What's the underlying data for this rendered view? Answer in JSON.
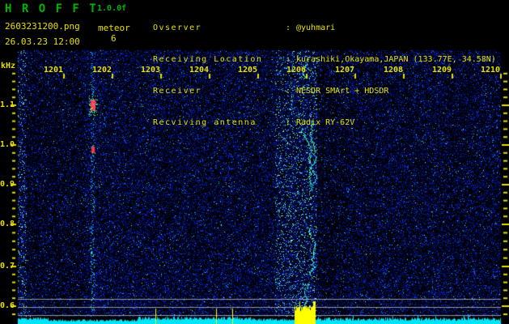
{
  "app": {
    "title": "H R O F F T",
    "version": "1.0.0f",
    "filename": "2603231200.png",
    "station_label": "meteor",
    "station_number": "6",
    "datetime": "26.03.23 12:00"
  },
  "info": {
    "rows": [
      {
        "label": "Ovserver",
        "sep": ":",
        "value": "@yuhmari"
      },
      {
        "label": "Receiving Location",
        "sep": ":",
        "value": "kurashiki,Okayama,JAPAN (133.77E, 34.58N)"
      },
      {
        "label": "Receiver",
        "sep": ":",
        "value": "NESDR SMArt + HDSDR"
      },
      {
        "label": "Recviving antenna",
        "sep": ":",
        "value": "Radix RY-62V"
      }
    ]
  },
  "axes": {
    "freq_unit": "kHz",
    "freq_ticks": [
      "1.1",
      "1.0",
      "0.9",
      "0.8",
      "0.7",
      "0.6"
    ],
    "time_ticks": [
      "1201",
      "1202",
      "1203",
      "1204",
      "1205",
      "1206",
      "1207",
      "1208",
      "1209",
      "1210"
    ]
  },
  "colors": {
    "title_green": "#00b400",
    "label_yellow": "#e8e000",
    "grid_gray": "#c8c8c8",
    "level_bar_cyan": "#00e4f8",
    "alarm_yellow": "#ffff00",
    "echo_cyan": "#28dcff",
    "hot_red": "#ff2838"
  }
}
